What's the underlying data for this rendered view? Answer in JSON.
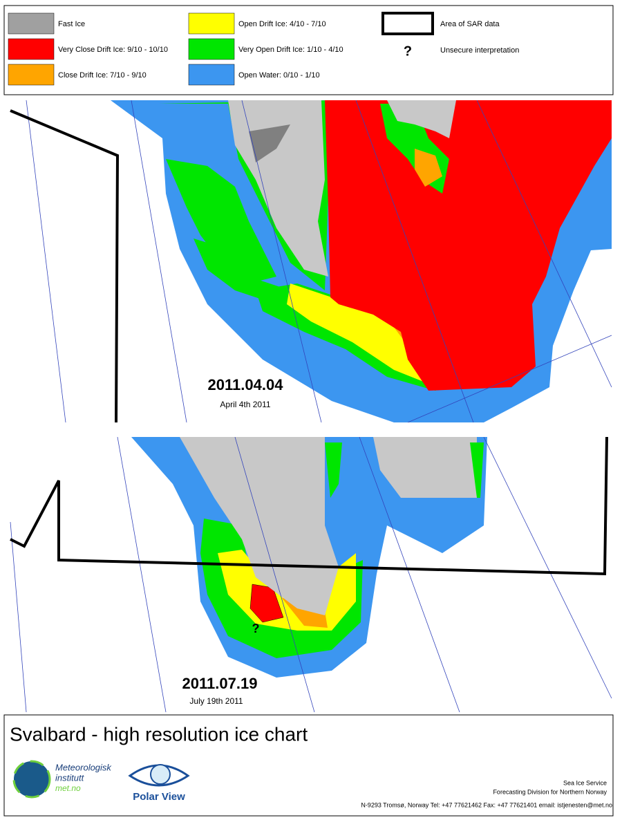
{
  "legend": {
    "items": [
      {
        "label": "Fast Ice",
        "color": "#a0a0a0"
      },
      {
        "label": "Very Close Drift Ice:  9/10 - 10/10",
        "color": "#ff0000"
      },
      {
        "label": "Close Drift Ice:  7/10 - 9/10",
        "color": "#ffa500"
      },
      {
        "label": "Open Drift Ice:  4/10 - 7/10",
        "color": "#ffff00"
      },
      {
        "label": "Very Open Drift Ice:  1/10 - 4/10",
        "color": "#00e600"
      },
      {
        "label": "Open Water:  0/10 - 1/10",
        "color": "#3c96f0"
      }
    ],
    "sar_label": "Area of SAR data",
    "unsecure_symbol": "?",
    "unsecure_label": "Unsecure interpretation"
  },
  "maps": [
    {
      "date": "2011.04.04",
      "subtitle": "April 4th 2011"
    },
    {
      "date": "2011.07.19",
      "subtitle": "July 19th 2011",
      "marker": "?"
    }
  ],
  "footer": {
    "title": "Svalbard - high resolution ice chart",
    "org1": [
      "Meteorologisk",
      "institutt",
      "met.no"
    ],
    "org2": "Polar View",
    "service": "Sea Ice Service",
    "division": "Forecasting Division for Northern Norway",
    "contact": "N-9293 Tromsø, Norway   Tel: +47 77621462   Fax: +47 77621401   email: istjenesten@met.no"
  }
}
